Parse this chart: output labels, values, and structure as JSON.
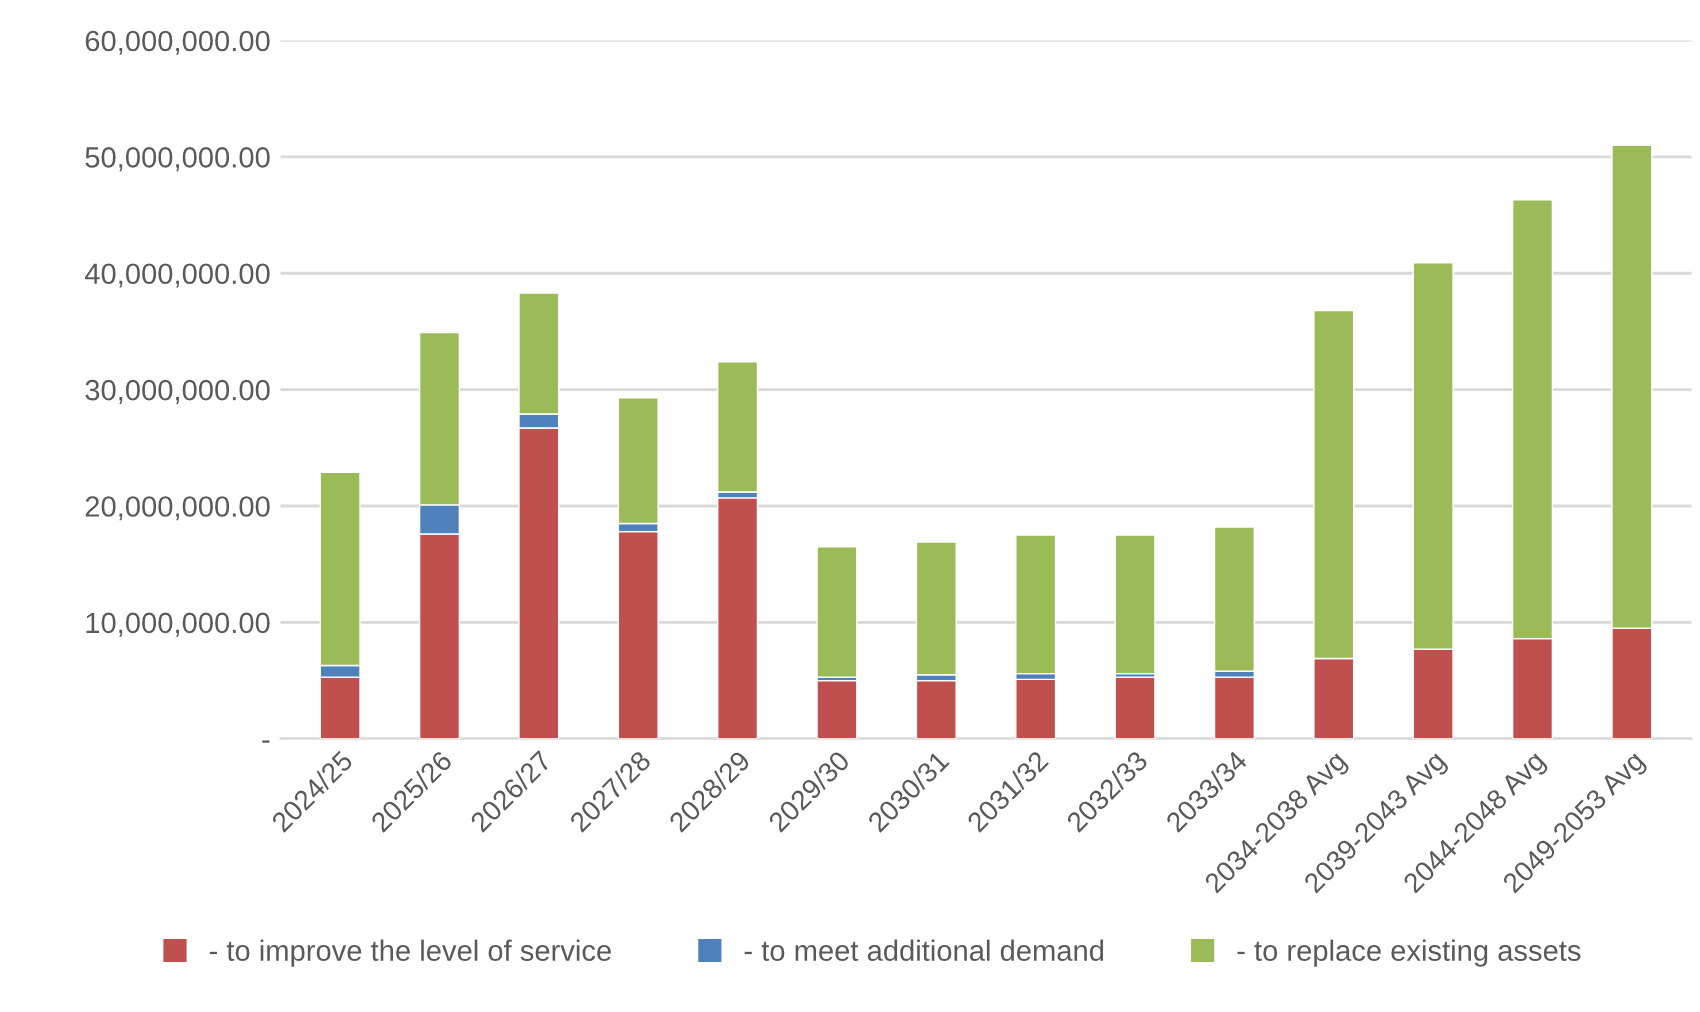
{
  "chart_data": {
    "type": "bar",
    "stacked": true,
    "categories": [
      "2024/25",
      "2025/26",
      "2026/27",
      "2027/28",
      "2028/29",
      "2029/30",
      "2030/31",
      "2031/32",
      "2032/33",
      "2033/34",
      "2034-2038 Avg",
      "2039-2043 Avg",
      "2044-2048 Avg",
      "2049-2053 Avg"
    ],
    "series": [
      {
        "name": "- to improve the level of service",
        "color": "#c0504d",
        "values": [
          5300000,
          17600000,
          26700000,
          17800000,
          20700000,
          5000000,
          5000000,
          5100000,
          5300000,
          5300000,
          6900000,
          7700000,
          8600000,
          9500000
        ]
      },
      {
        "name": "- to meet additional demand",
        "color": "#4f81bd",
        "values": [
          1000000,
          2500000,
          1200000,
          700000,
          500000,
          300000,
          500000,
          500000,
          300000,
          500000,
          null,
          null,
          null,
          null
        ]
      },
      {
        "name": "- to replace existing assets",
        "color": "#9bbb59",
        "values": [
          16600000,
          14800000,
          10400000,
          10800000,
          11200000,
          11200000,
          11400000,
          11900000,
          11900000,
          12400000,
          29900000,
          33200000,
          37700000,
          41500000
        ]
      }
    ],
    "ylim": [
      0,
      60000000
    ],
    "yticks": [
      {
        "value": 0,
        "label": "-"
      },
      {
        "value": 10000000,
        "label": "10,000,000.00"
      },
      {
        "value": 20000000,
        "label": "20,000,000.00"
      },
      {
        "value": 30000000,
        "label": "30,000,000.00"
      },
      {
        "value": 40000000,
        "label": "40,000,000.00"
      },
      {
        "value": 50000000,
        "label": "50,000,000.00"
      },
      {
        "value": 60000000,
        "label": "60,000,000.00"
      }
    ],
    "grid": "y",
    "legend": "bottom"
  }
}
